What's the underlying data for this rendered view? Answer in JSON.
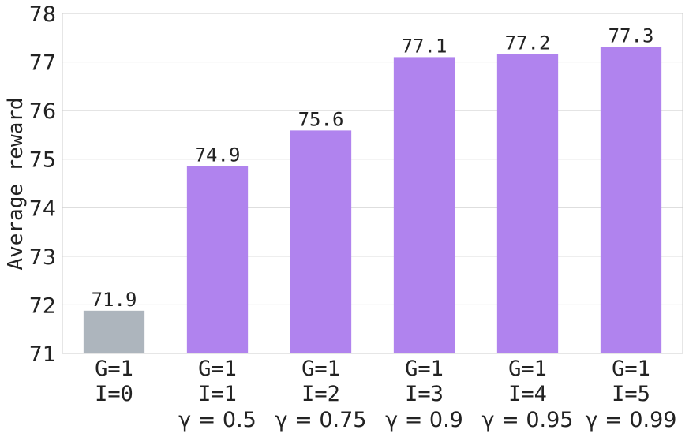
{
  "chart_data": {
    "type": "bar",
    "ylabel": "Average reward",
    "ylim": [
      71,
      78
    ],
    "yticks": [
      "71",
      "72",
      "73",
      "74",
      "75",
      "76",
      "77",
      "78"
    ],
    "grid": true,
    "categories": [
      {
        "line1": "G=1",
        "line2": "I=0",
        "line3": ""
      },
      {
        "line1": "G=1",
        "line2": "I=1",
        "line3": "γ = 0.5"
      },
      {
        "line1": "G=1",
        "line2": "I=2",
        "line3": "γ = 0.75"
      },
      {
        "line1": "G=1",
        "line2": "I=3",
        "line3": "γ = 0.9"
      },
      {
        "line1": "G=1",
        "line2": "I=4",
        "line3": "γ = 0.95"
      },
      {
        "line1": "G=1",
        "line2": "I=5",
        "line3": "γ = 0.99"
      }
    ],
    "values": [
      71.88,
      74.86,
      75.59,
      77.1,
      77.16,
      77.31
    ],
    "value_labels": [
      "71.9",
      "74.9",
      "75.6",
      "77.1",
      "77.2",
      "77.3"
    ],
    "colors": [
      "#adb5bd",
      "#b083ee",
      "#b083ee",
      "#b083ee",
      "#b083ee",
      "#b083ee"
    ],
    "grid_color": "#d3d3d3",
    "frame_color": "#cccccc"
  }
}
